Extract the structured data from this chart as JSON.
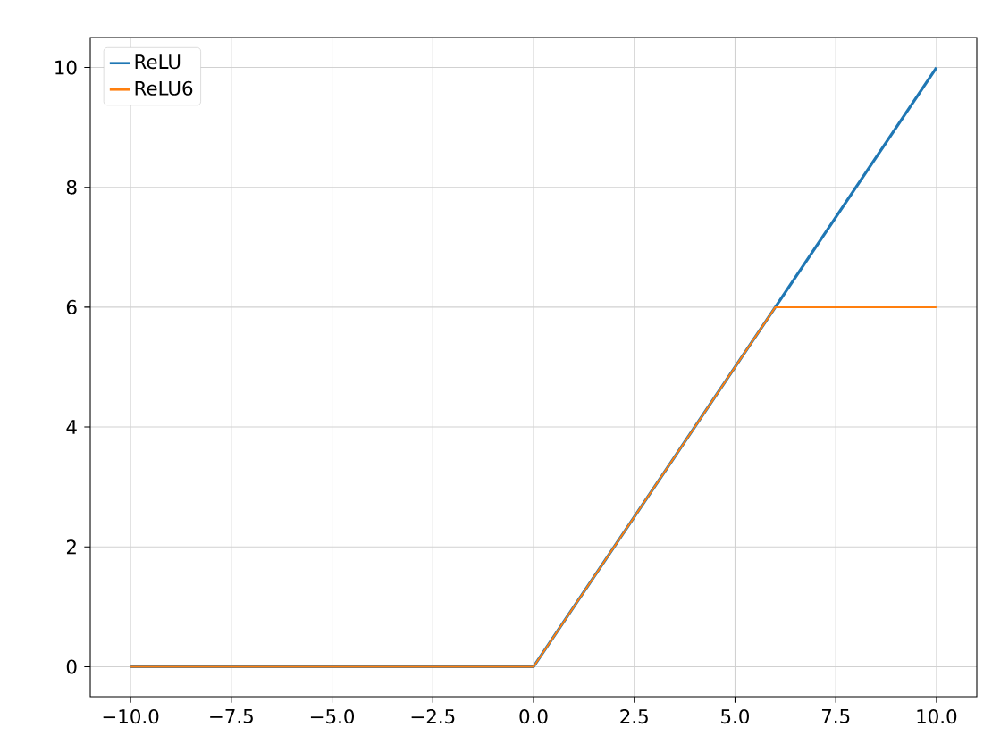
{
  "chart_data": {
    "type": "line",
    "xlim": [
      -11,
      11
    ],
    "ylim": [
      -0.5,
      10.5
    ],
    "xticks": [
      {
        "value": -10,
        "label": "−10.0"
      },
      {
        "value": -7.5,
        "label": "−7.5"
      },
      {
        "value": -5,
        "label": "−5.0"
      },
      {
        "value": -2.5,
        "label": "−2.5"
      },
      {
        "value": 0,
        "label": "0.0"
      },
      {
        "value": 2.5,
        "label": "2.5"
      },
      {
        "value": 5,
        "label": "5.0"
      },
      {
        "value": 7.5,
        "label": "7.5"
      },
      {
        "value": 10,
        "label": "10.0"
      }
    ],
    "yticks": [
      0,
      2,
      4,
      6,
      8,
      10
    ],
    "series": [
      {
        "name": "ReLU",
        "color": "#1f77b4",
        "x": [
          -10,
          0,
          10
        ],
        "values": [
          0,
          0,
          10
        ]
      },
      {
        "name": "ReLU6",
        "color": "#ff7f0e",
        "x": [
          -10,
          0,
          6,
          10
        ],
        "values": [
          0,
          0,
          6,
          6
        ]
      }
    ],
    "grid": true,
    "legend": "top left",
    "marker": "none",
    "line_style": "solid"
  }
}
